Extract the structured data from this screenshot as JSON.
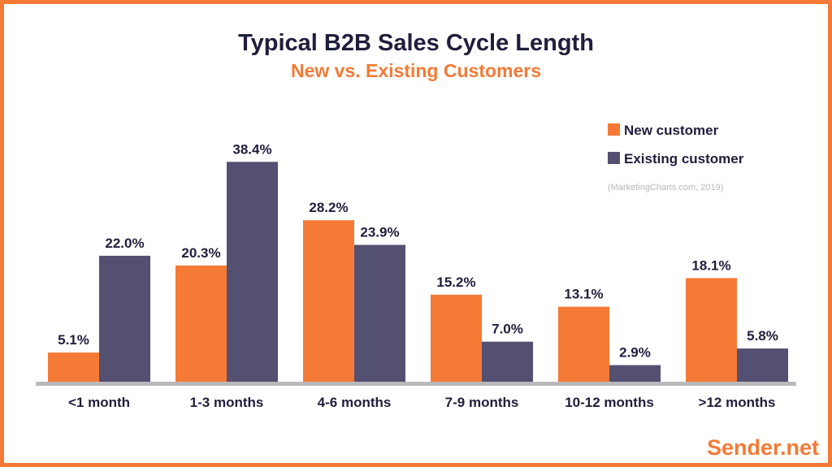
{
  "chart_data": {
    "type": "bar",
    "title": "Typical B2B Sales Cycle Length",
    "subtitle": "New vs. Existing Customers",
    "categories": [
      "<1 month",
      "1-3 months",
      "4-6 months",
      "7-9 months",
      "10-12 months",
      ">12 months"
    ],
    "series": [
      {
        "name": "New customer",
        "color": "#F47A36",
        "values": [
          5.1,
          20.3,
          28.2,
          15.2,
          13.1,
          18.1
        ]
      },
      {
        "name": "Existing customer",
        "color": "#545072",
        "values": [
          22.0,
          38.4,
          23.9,
          7.0,
          2.9,
          5.8
        ]
      }
    ],
    "data_labels": [
      [
        "5.1%",
        "20.3%",
        "28.2%",
        "15.2%",
        "13.1%",
        "18.1%"
      ],
      [
        "22.0%",
        "38.4%",
        "23.9%",
        "7.0%",
        "2.9%",
        "5.8%"
      ]
    ],
    "ylim": [
      0,
      40
    ],
    "grid": false,
    "legend_position": "top-right",
    "source": "(MarketingCharts.com, 2019)"
  },
  "brand": {
    "logo_text": "Sender.net",
    "accent": "#F47A36",
    "text_color": "#1F1E3C"
  }
}
